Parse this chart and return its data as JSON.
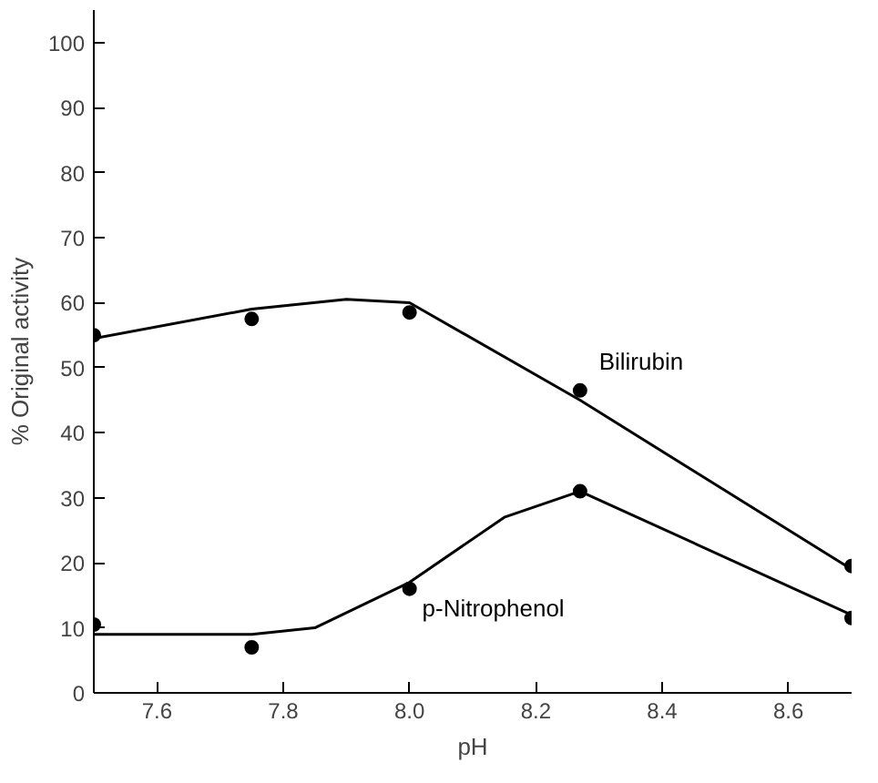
{
  "chart_data": {
    "type": "line",
    "xlabel": "pH",
    "ylabel": "% Original activity",
    "xlim": [
      7.5,
      8.7
    ],
    "xticks": [
      7.6,
      7.8,
      {
        "value": 8.0,
        "label": "8.0"
      },
      8.2,
      8.4,
      8.6
    ],
    "ylim": [
      0,
      105
    ],
    "yticks": [
      0,
      10,
      20,
      30,
      40,
      50,
      60,
      70,
      80,
      90,
      100
    ],
    "grid": false,
    "legend": false,
    "marker": "none",
    "line_style": "solid",
    "series": [
      {
        "name": "Bilirubin",
        "color": "#000000",
        "x": [
          7.5,
          7.75,
          7.9,
          8.0,
          8.27,
          8.7
        ],
        "values": [
          54.5,
          59,
          60.5,
          60,
          45,
          19
        ]
      },
      {
        "name": "p-Nitrophenol",
        "color": "#000000",
        "x": [
          7.5,
          7.75,
          7.85,
          8.0,
          8.15,
          8.27,
          8.7
        ],
        "values": [
          9,
          9,
          10,
          17,
          27,
          31,
          12
        ]
      },
      {
        "type": "scatter",
        "marker": "circle",
        "color": "#000000",
        "x": [
          7.5,
          7.75,
          8.0,
          8.27,
          8.7
        ],
        "values": [
          55,
          57.5,
          58.5,
          46.5,
          19.5
        ]
      },
      {
        "type": "scatter",
        "marker": "circle",
        "color": "#000000",
        "x": [
          7.5,
          7.75,
          8.0,
          8.27,
          8.7
        ],
        "values": [
          10.5,
          7,
          16,
          31,
          11.5
        ]
      }
    ]
  }
}
